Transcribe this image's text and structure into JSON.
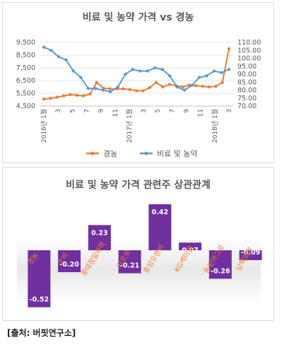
{
  "source_note": "[출처: 버핏연구소]",
  "chart_data": [
    {
      "type": "line",
      "title": "비료 및 농약 가격 vs 경농",
      "x_tick_labels": [
        "2016년 1월",
        "3",
        "5",
        "7",
        "9",
        "11",
        "2017년 1월",
        "3",
        "5",
        "7",
        "9",
        "11",
        "2018년 1월",
        "3"
      ],
      "left_axis": {
        "ticks": [
          "4,500",
          "5,500",
          "6,500",
          "7,500",
          "8,500",
          "9,500"
        ],
        "ylim": [
          4500,
          9500
        ]
      },
      "right_axis": {
        "ticks": [
          "70.00",
          "75.00",
          "80.00",
          "85.00",
          "90.00",
          "95.00",
          "100.00",
          "105.00",
          "110.00"
        ],
        "ylim": [
          70,
          110
        ]
      },
      "legend": "bottom",
      "series": [
        {
          "name": "경농",
          "axis": "left",
          "color": "#ed7d31",
          "values": [
            5050,
            5100,
            5200,
            5300,
            5400,
            5350,
            5300,
            5450,
            6350,
            5900,
            5850,
            5850,
            5850,
            5800,
            5700,
            5700,
            5950,
            6350,
            6000,
            6200,
            6100,
            6000,
            6150,
            6100,
            6050,
            6000,
            6050,
            6350,
            9000
          ]
        },
        {
          "name": "비료 및 농약",
          "axis": "right",
          "color": "#5b9bd5",
          "values": [
            107,
            105,
            101,
            99,
            92,
            88,
            81,
            81,
            80,
            79,
            82,
            90,
            93,
            92,
            92,
            94,
            93,
            89,
            82,
            80,
            83,
            88,
            89,
            92,
            91,
            93
          ]
        }
      ]
    },
    {
      "type": "bar",
      "title": "비료 및 농약 가격 관련주 상관관계",
      "categories": [
        "경농",
        "조비",
        "롯데정밀화학",
        "카프로",
        "효성오앤비",
        "KG케미칼",
        "동방아그로",
        "남해화학"
      ],
      "values": [
        -0.52,
        -0.2,
        0.23,
        -0.21,
        0.42,
        0.07,
        -0.26,
        -0.09
      ],
      "value_labels": [
        "-0.52",
        "-0.20",
        "0.23",
        "-0.21",
        "0.42",
        "0.07",
        "-0.26",
        "-0.09"
      ],
      "bar_color": "#7030a0",
      "label_color": "#ed7d31"
    }
  ]
}
